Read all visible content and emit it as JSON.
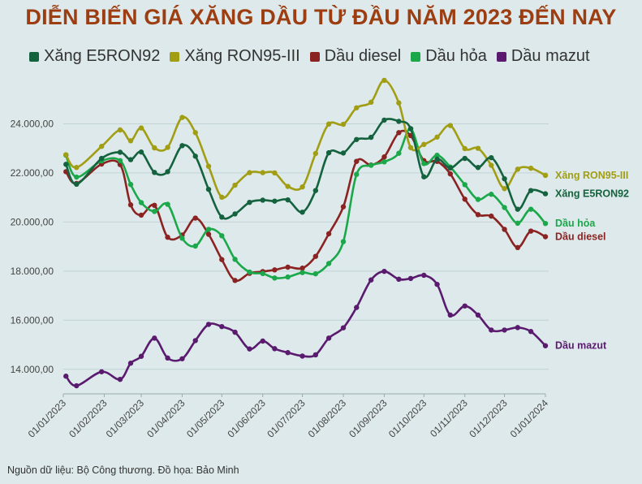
{
  "title": "DIỄN BIẾN GIÁ XĂNG DẦU TỪ ĐẦU NĂM 2023 ĐẾN NAY",
  "source": "Nguồn dữ liệu: Bộ Công thương. Đồ họa: Bảo Minh",
  "chart_data": {
    "type": "line",
    "title": "DIỄN BIẾN GIÁ XĂNG DẦU TỪ ĐẦU NĂM 2023 ĐẾN NAY",
    "legend_position": "top",
    "grid": true,
    "ylim": [
      13000,
      25900
    ],
    "yticks": [
      14000,
      16000,
      18000,
      20000,
      22000,
      24000
    ],
    "ytick_labels": [
      "14.000,00",
      "16.000,00",
      "18.000,00",
      "20.000,00",
      "22.000,00",
      "24.000,00"
    ],
    "xtick_labels": [
      "01/01/2023",
      "01/02/2023",
      "01/03/2023",
      "01/04/2023",
      "01/05/2023",
      "01/06/2023",
      "01/07/2023",
      "01/08/2023",
      "01/09/2023",
      "01/10/2023",
      "01/11/2023",
      "01/12/2023",
      "01/01/2024"
    ],
    "x": [
      "2023-01-03",
      "2023-01-11",
      "2023-01-30",
      "2023-02-13",
      "2023-02-21",
      "2023-03-01",
      "2023-03-11",
      "2023-03-21",
      "2023-04-01",
      "2023-04-11",
      "2023-04-21",
      "2023-05-01",
      "2023-05-11",
      "2023-05-22",
      "2023-06-01",
      "2023-06-10",
      "2023-06-20",
      "2023-07-01",
      "2023-07-11",
      "2023-07-21",
      "2023-08-01",
      "2023-08-11",
      "2023-08-22",
      "2023-09-01",
      "2023-09-12",
      "2023-09-21",
      "2023-10-01",
      "2023-10-11",
      "2023-10-21",
      "2023-11-01",
      "2023-11-11",
      "2023-11-21",
      "2023-12-01",
      "2023-12-11",
      "2023-12-21",
      "2024-01-01"
    ],
    "series": [
      {
        "name": "Xăng E5RON92",
        "color": "#14623e",
        "values": [
          22350,
          21540,
          22590,
          22840,
          22540,
          22850,
          22020,
          22050,
          23110,
          22680,
          21330,
          20200,
          20330,
          20800,
          20890,
          20850,
          20900,
          20400,
          21280,
          22820,
          22810,
          23360,
          23450,
          24150,
          24100,
          23800,
          21840,
          22560,
          22200,
          22590,
          22220,
          22620,
          21760,
          20520,
          21280,
          21150
        ]
      },
      {
        "name": "Xăng RON95-III",
        "color": "#a19e14",
        "values": [
          22740,
          22220,
          23080,
          23750,
          23310,
          23830,
          23020,
          23040,
          24260,
          23640,
          22270,
          21010,
          21500,
          22010,
          22010,
          22000,
          21450,
          21430,
          22790,
          23990,
          23980,
          24650,
          24880,
          25770,
          24850,
          23030,
          23160,
          23460,
          23930,
          22990,
          23000,
          22310,
          21360,
          22150,
          22190,
          21900
        ]
      },
      {
        "name": "Dầu diesel",
        "color": "#8b2323",
        "values": [
          22050,
          21570,
          22360,
          22340,
          20700,
          20280,
          20680,
          19380,
          19470,
          20160,
          19500,
          18470,
          17620,
          17910,
          17980,
          18050,
          18160,
          18120,
          18600,
          19520,
          20620,
          22470,
          22320,
          22650,
          23640,
          23520,
          22500,
          22470,
          21960,
          20930,
          20300,
          20240,
          19700,
          18960,
          19630,
          19400
        ]
      },
      {
        "name": "Dầu hỏa",
        "color": "#1aa84a",
        "values": [
          22720,
          21830,
          22490,
          22500,
          21530,
          20790,
          20430,
          20720,
          19340,
          19020,
          19700,
          19440,
          18480,
          17960,
          17900,
          17720,
          17760,
          17940,
          17890,
          18310,
          19200,
          21940,
          22310,
          22450,
          22800,
          23800,
          22380,
          22720,
          22240,
          21520,
          20920,
          21130,
          20590,
          19950,
          20520,
          19940
        ]
      },
      {
        "name": "Dầu mazut",
        "color": "#5a1a6e",
        "values": [
          13720,
          13330,
          13900,
          13590,
          14250,
          14530,
          15270,
          14460,
          14430,
          15170,
          15830,
          15740,
          15510,
          14830,
          15150,
          14840,
          14680,
          14540,
          14590,
          15270,
          15690,
          16520,
          17640,
          17990,
          17670,
          17700,
          17830,
          17460,
          16210,
          16580,
          16210,
          15600,
          15600,
          15700,
          15540,
          14960
        ]
      }
    ],
    "end_labels": [
      "Xăng RON95-III",
      "Xăng E5RON92",
      "Dầu hỏa",
      "Dầu diesel",
      "Dầu mazut"
    ]
  }
}
